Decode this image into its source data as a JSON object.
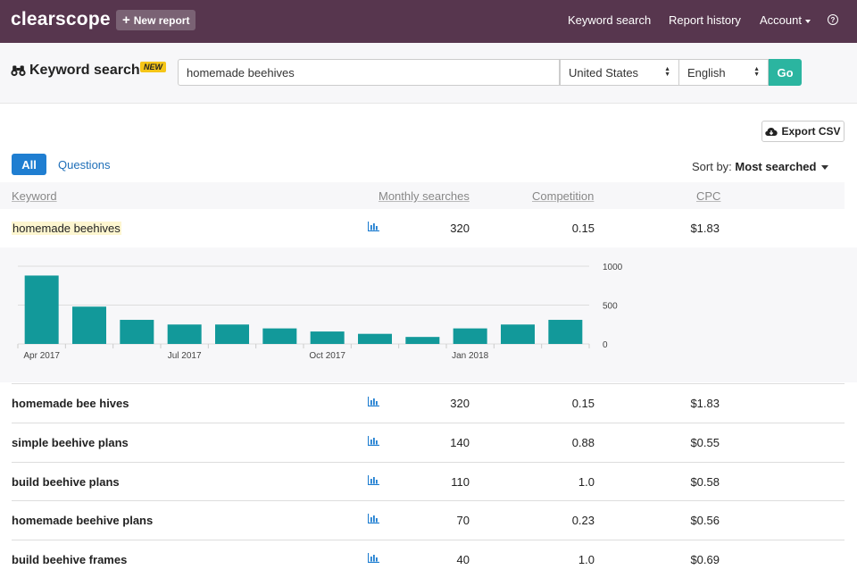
{
  "nav": {
    "logo": "clearscope",
    "new_report": "New report",
    "links": {
      "keyword_search": "Keyword search",
      "report_history": "Report history",
      "account": "Account",
      "help": "?"
    }
  },
  "search": {
    "title": "Keyword search",
    "badge": "NEW",
    "query": "homemade beehives",
    "country": "United States",
    "language": "English",
    "go": "Go"
  },
  "toolbar": {
    "export": "Export CSV",
    "tabs": [
      "All",
      "Questions"
    ],
    "sort_prefix": "Sort by:",
    "sort_value": "Most searched"
  },
  "table": {
    "headers": {
      "keyword": "Keyword",
      "searches": "Monthly searches",
      "competition": "Competition",
      "cpc": "CPC"
    },
    "rows": [
      {
        "keyword": "homemade beehives",
        "searches": "320",
        "competition": "0.15",
        "cpc": "$1.83"
      },
      {
        "keyword": "homemade bee hives",
        "searches": "320",
        "competition": "0.15",
        "cpc": "$1.83"
      },
      {
        "keyword": "simple beehive plans",
        "searches": "140",
        "competition": "0.88",
        "cpc": "$0.55"
      },
      {
        "keyword": "build beehive plans",
        "searches": "110",
        "competition": "1.0",
        "cpc": "$0.58"
      },
      {
        "keyword": "homemade beehive plans",
        "searches": "70",
        "competition": "0.23",
        "cpc": "$0.56"
      },
      {
        "keyword": "build beehive frames",
        "searches": "40",
        "competition": "1.0",
        "cpc": "$0.69"
      }
    ]
  },
  "colors": {
    "nav_bg": "#57364e",
    "accent_teal": "#2bb5a0",
    "bar_color": "#12999a",
    "tab_blue": "#1f7ed1"
  },
  "chart_data": {
    "type": "bar",
    "categories": [
      "Apr 2017",
      "May 2017",
      "Jun 2017",
      "Jul 2017",
      "Aug 2017",
      "Sep 2017",
      "Oct 2017",
      "Nov 2017",
      "Dec 2017",
      "Jan 2018",
      "Feb 2018",
      "Mar 2018"
    ],
    "values": [
      880,
      480,
      310,
      250,
      250,
      200,
      160,
      130,
      90,
      200,
      250,
      310
    ],
    "x_tick_labels": [
      "Apr 2017",
      "Jul 2017",
      "Oct 2017",
      "Jan 2018"
    ],
    "y_tick_labels": [
      "1000",
      "500",
      "0"
    ],
    "ylim": [
      0,
      1000
    ],
    "grid": true
  }
}
